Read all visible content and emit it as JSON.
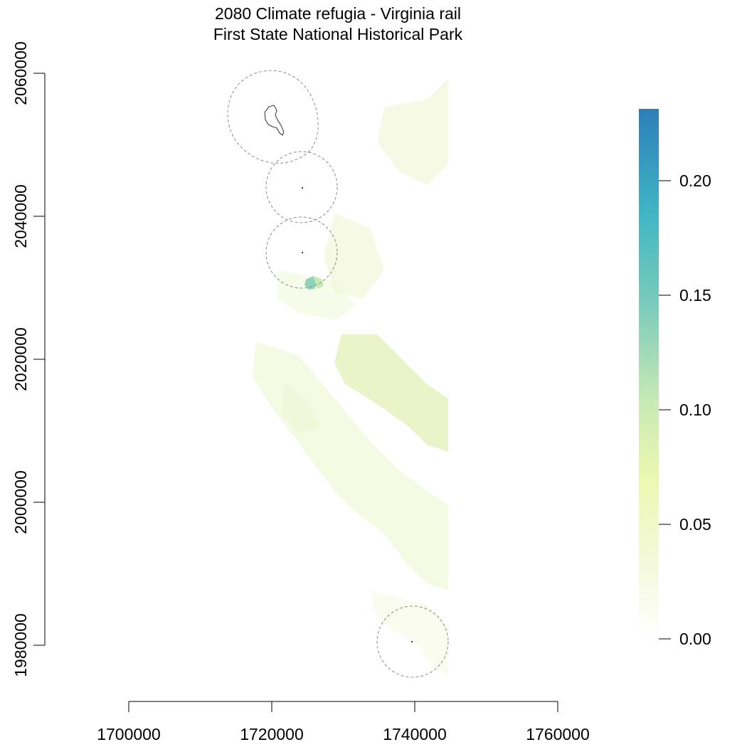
{
  "title": {
    "line1": "2080 Climate refugia - Virginia rail",
    "line2": "First State National Historical Park"
  },
  "x_axis": {
    "ticks": [
      "1700000",
      "1720000",
      "1740000",
      "1760000"
    ]
  },
  "y_axis": {
    "ticks": [
      "1980000",
      "2000000",
      "2020000",
      "2040000",
      "2060000"
    ]
  },
  "legend": {
    "ticks": [
      "0.00",
      "0.05",
      "0.10",
      "0.15",
      "0.20"
    ],
    "colors": [
      "#ffffff",
      "#f3f9dc",
      "#edf8b1",
      "#c7e9b4",
      "#7fcdbb",
      "#41b6c4",
      "#2c7fb8"
    ],
    "max_value": 0.23
  },
  "colors": {
    "habitat_low": "#eef6cf",
    "habitat_mid": "#dbeeb0",
    "hotspot": "#8fd3b9",
    "buffer_outline": "#8c8c8c",
    "park_boundary": "#000000"
  }
}
